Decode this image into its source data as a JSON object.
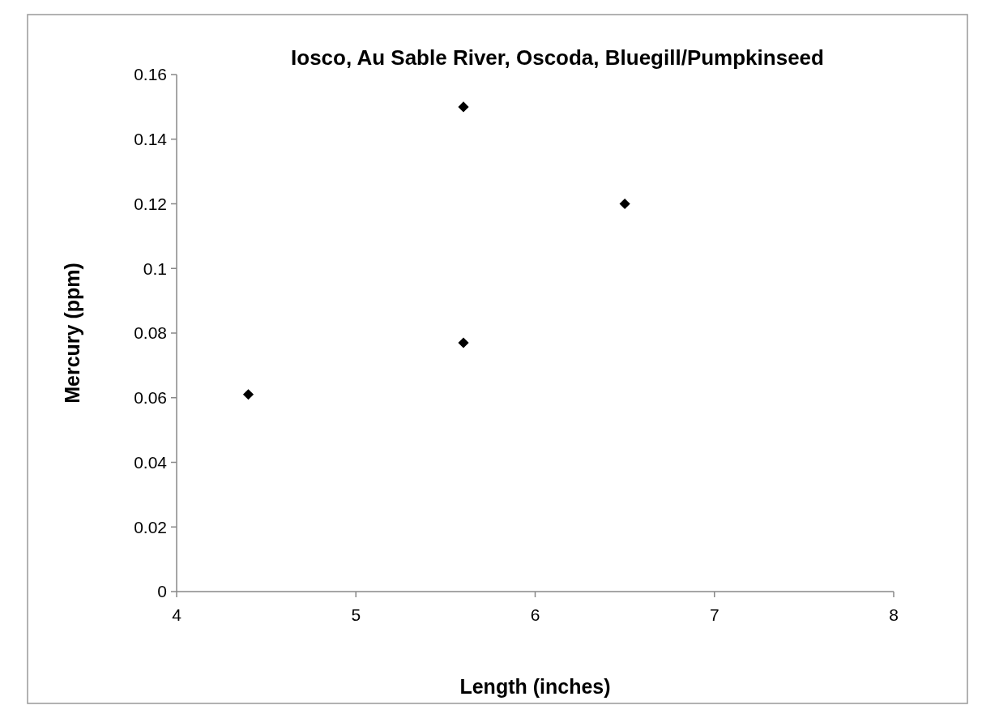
{
  "chart_data": {
    "type": "scatter",
    "title": "Iosco, Au Sable River, Oscoda, Bluegill/Pumpkinseed",
    "xlabel": "Length (inches)",
    "ylabel": "Mercury (ppm)",
    "series": [
      {
        "color": "#000000",
        "x": [
          4.4,
          5.6,
          6.5,
          5.6
        ],
        "values": [
          0.061,
          0.15,
          0.12,
          0.077
        ]
      }
    ],
    "xlim": [
      4,
      8
    ],
    "xticks": [
      4,
      5,
      6,
      7,
      8
    ],
    "ylim": [
      0,
      0.16
    ],
    "yticks": [
      0,
      0.02,
      0.04,
      0.06,
      0.08,
      0.1,
      0.12,
      0.14,
      0.16
    ],
    "marker": "diamond"
  }
}
